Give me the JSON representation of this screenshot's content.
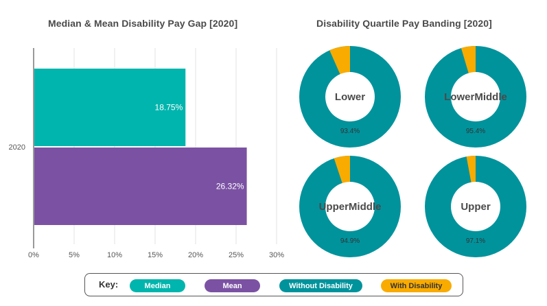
{
  "chart_data": [
    {
      "type": "bar",
      "orientation": "horizontal",
      "title": "Median & Mean Disability Pay Gap [2020]",
      "categories": [
        "2020"
      ],
      "series": [
        {
          "name": "Median",
          "values": [
            18.75
          ],
          "label": "18.75%",
          "color": "#00b5ad"
        },
        {
          "name": "Mean",
          "values": [
            26.32
          ],
          "label": "26.32%",
          "color": "#7b52a3"
        }
      ],
      "xlim": [
        0,
        30
      ],
      "xticks": [
        0,
        5,
        10,
        15,
        20,
        25,
        30
      ],
      "xtick_labels": [
        "0%",
        "5%",
        "10%",
        "15%",
        "20%",
        "25%",
        "30%"
      ],
      "grid": true
    },
    {
      "type": "pie",
      "title": "Disability Quartile Pay Banding [2020]",
      "donuts": [
        {
          "name": "Lower",
          "label_lines": [
            "Lower"
          ],
          "without_disability": 93.4,
          "with_disability": 6.6,
          "pct_label": "93.4%"
        },
        {
          "name": "Lower Middle",
          "label_lines": [
            "Lower",
            "Middle"
          ],
          "without_disability": 95.4,
          "with_disability": 4.6,
          "pct_label": "95.4%"
        },
        {
          "name": "Upper Middle",
          "label_lines": [
            "Upper",
            "Middle"
          ],
          "without_disability": 94.9,
          "with_disability": 5.1,
          "pct_label": "94.9%"
        },
        {
          "name": "Upper",
          "label_lines": [
            "Upper"
          ],
          "without_disability": 97.1,
          "with_disability": 2.9,
          "pct_label": "97.1%"
        }
      ]
    }
  ],
  "key": {
    "label": "Key:",
    "items": [
      {
        "label": "Median",
        "color": "#00b5ad"
      },
      {
        "label": "Mean",
        "color": "#7b52a3"
      },
      {
        "label": "Without Disability",
        "color": "#00939c"
      },
      {
        "label": "With Disability",
        "color": "#f9ab00"
      }
    ]
  }
}
